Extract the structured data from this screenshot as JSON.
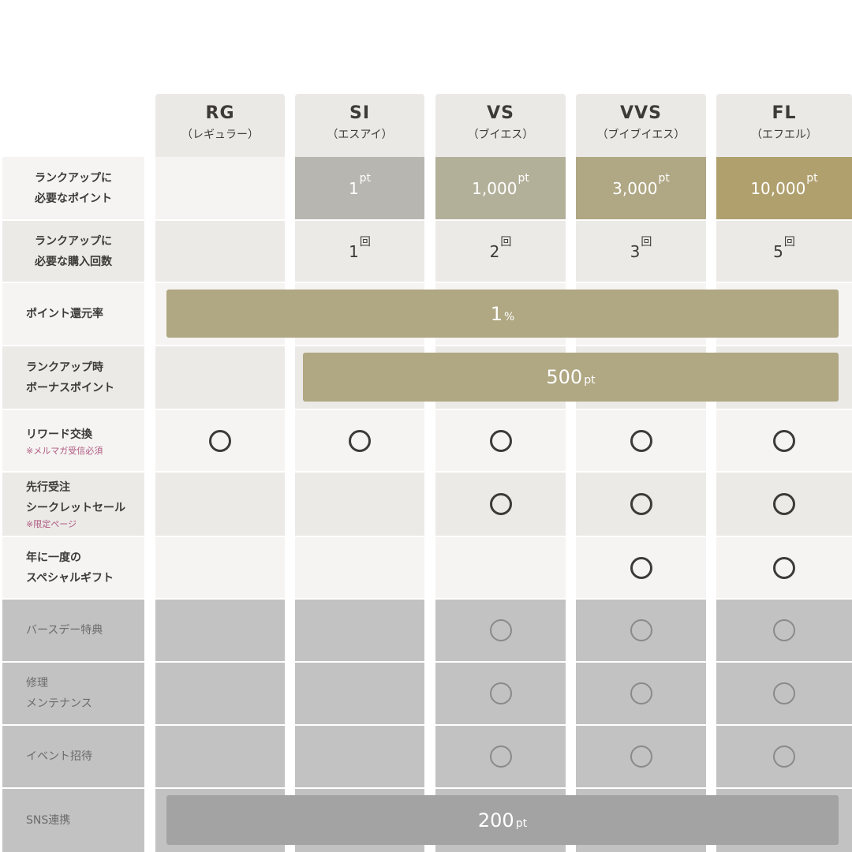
{
  "colors": {
    "row_light": "#f5f4f2",
    "row_dark": "#ebeae7",
    "row_gray": "#c2c2c2",
    "bar_gold": "#b0a783",
    "bar_gray": "#a3a3a3",
    "note": "#b05a82"
  },
  "ranks": [
    {
      "code": "RG",
      "kana": "（レギュラー）"
    },
    {
      "code": "SI",
      "kana": "（エスアイ）"
    },
    {
      "code": "VS",
      "kana": "（ブイエス）"
    },
    {
      "code": "VVS",
      "kana": "（ブイブイエス）"
    },
    {
      "code": "FL",
      "kana": "（エフエル）"
    }
  ],
  "rows": [
    {
      "label": [
        "ランクアップに",
        "必要なポイント"
      ],
      "tone": "light",
      "cells": [
        null,
        {
          "v": "1",
          "u": "pt",
          "bg": "#b8b6b0"
        },
        {
          "v": "1,000",
          "u": "pt",
          "bg": "#b3b09a"
        },
        {
          "v": "3,000",
          "u": "pt",
          "bg": "#b0a784"
        },
        {
          "v": "10,000",
          "u": "pt",
          "bg": "#b0a06e"
        }
      ]
    },
    {
      "label": [
        "ランクアップに",
        "必要な購入回数"
      ],
      "tone": "dark",
      "cells": [
        null,
        {
          "v": "1",
          "u": "回"
        },
        {
          "v": "2",
          "u": "回"
        },
        {
          "v": "3",
          "u": "回"
        },
        {
          "v": "5",
          "u": "回"
        }
      ]
    },
    {
      "label": [
        "ポイント還元率"
      ],
      "tone": "light",
      "bar": {
        "v": "1",
        "u": "%",
        "from": 0
      }
    },
    {
      "label": [
        "ランクアップ時",
        "ボーナスポイント"
      ],
      "tone": "dark",
      "bar": {
        "v": "500",
        "u": "pt",
        "from": 1
      }
    },
    {
      "label": [
        "リワード交換"
      ],
      "note": "※メルマガ受信必須",
      "tone": "light",
      "cells": [
        "o",
        "o",
        "o",
        "o",
        "o"
      ]
    },
    {
      "label": [
        "先行受注",
        "シークレットセール"
      ],
      "note": "※限定ページ",
      "tone": "dark",
      "cells": [
        null,
        null,
        "o",
        "o",
        "o"
      ]
    },
    {
      "label": [
        "年に一度の",
        "スペシャルギフト"
      ],
      "tone": "light",
      "cells": [
        null,
        null,
        null,
        "o",
        "o"
      ]
    },
    {
      "label": [
        "バースデー特典"
      ],
      "tone": "gray",
      "cells": [
        null,
        null,
        "o",
        "o",
        "o"
      ]
    },
    {
      "label": [
        "修理",
        "メンテナンス"
      ],
      "tone": "gray",
      "cells": [
        null,
        null,
        "o",
        "o",
        "o"
      ]
    },
    {
      "label": [
        "イベント招待"
      ],
      "tone": "gray",
      "cells": [
        null,
        null,
        "o",
        "o",
        "o"
      ]
    },
    {
      "label": [
        "SNS連携"
      ],
      "tone": "gray",
      "bar": {
        "v": "200",
        "u": "pt",
        "from": 0
      }
    }
  ]
}
